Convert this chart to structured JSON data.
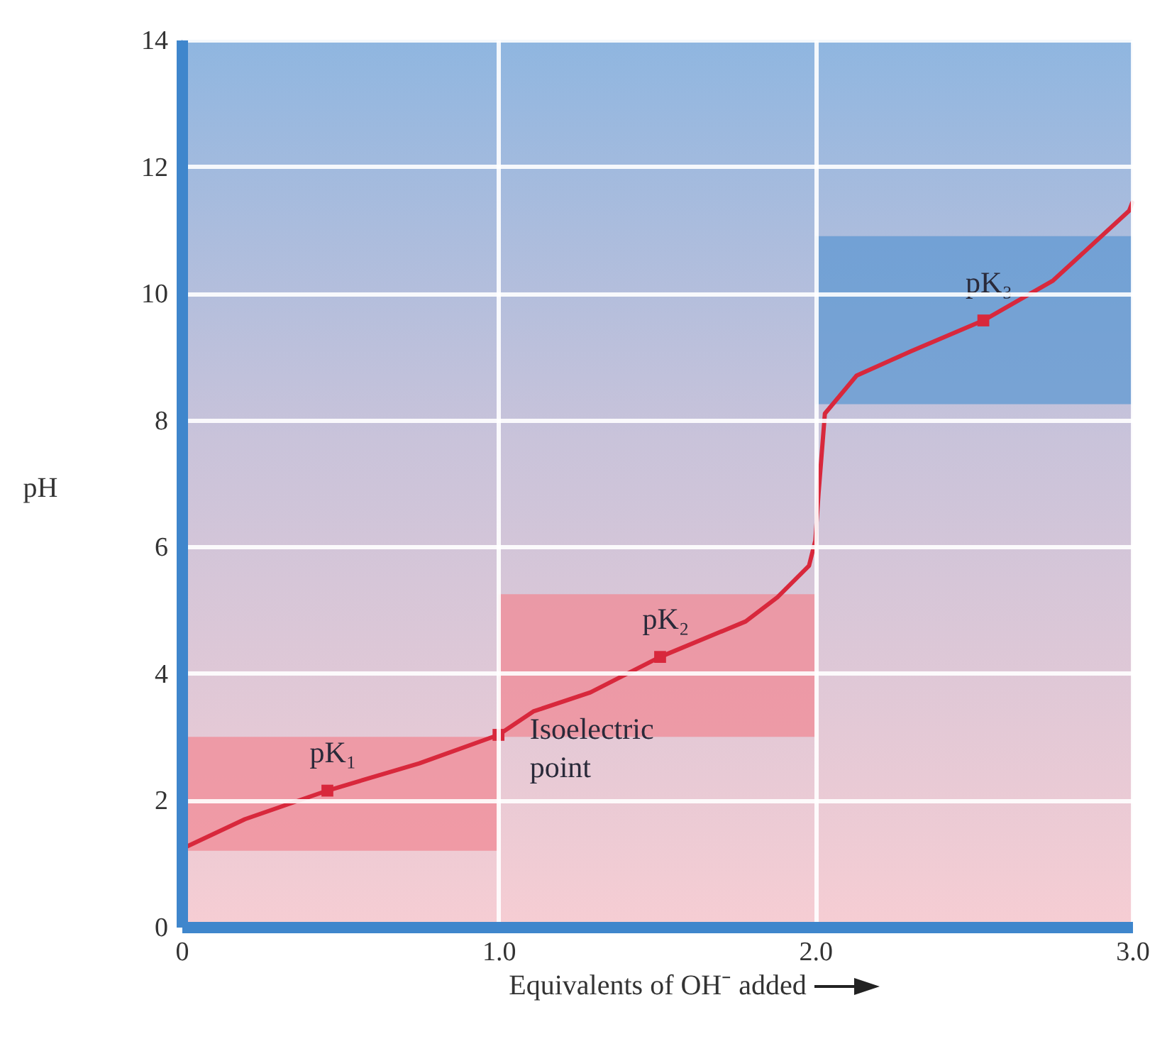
{
  "chart_data": {
    "type": "line",
    "xlabel": "Equivalents of OH⁻ added",
    "ylabel": "pH",
    "x": [
      0,
      0.2,
      0.46,
      0.75,
      1.0,
      1.11,
      1.29,
      1.51,
      1.78,
      1.88,
      1.98,
      2.0,
      2.01,
      2.03,
      2.13,
      2.3,
      2.53,
      2.75,
      2.99,
      3.0
    ],
    "series": [
      {
        "color": "#d8283c",
        "values": [
          1.23,
          1.7,
          2.15,
          2.58,
          3.03,
          3.4,
          3.7,
          4.26,
          4.82,
          5.2,
          5.7,
          6.1,
          6.84,
          8.1,
          8.7,
          9.08,
          9.57,
          10.2,
          11.3,
          11.43
        ]
      },
      {
        "type": "scatter",
        "marker": "square",
        "color": "#d8283c",
        "x": [
          0.46,
          1.0,
          1.51,
          2.53
        ],
        "values": [
          2.15,
          3.03,
          4.26,
          9.57
        ]
      }
    ],
    "xlim": [
      0,
      3
    ],
    "ylim": [
      0,
      14
    ],
    "xticks": [
      0,
      {
        "value": 1,
        "label": "1.0"
      },
      {
        "value": 2,
        "label": "2.0"
      },
      {
        "value": 3,
        "label": "3.0"
      }
    ],
    "yticks": [
      0,
      2,
      4,
      6,
      8,
      10,
      12,
      14
    ],
    "grid": true,
    "marker": "none",
    "line_style": "solid",
    "bands": [
      {
        "axis": "y",
        "from": 1.2,
        "to": 3.0,
        "color": "#f08a96"
      },
      {
        "axis": "y",
        "from": 3.0,
        "to": 5.25,
        "color": "#f08a96"
      },
      {
        "axis": "y",
        "from": 8.25,
        "to": 10.9,
        "color": "#5f98d2"
      }
    ],
    "annotations": [
      {
        "text": "pK₁",
        "x": 0.46,
        "y": 2.15
      },
      {
        "text": "Isoelectric point",
        "x": 1.0,
        "y": 3.03
      },
      {
        "text": "pK₂",
        "x": 1.51,
        "y": 4.26
      },
      {
        "text": "pK₃",
        "x": 2.53,
        "y": 9.57
      }
    ]
  }
}
